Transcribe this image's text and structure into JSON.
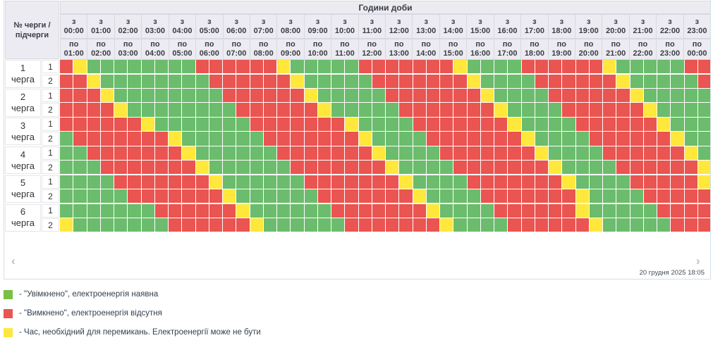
{
  "header": {
    "corner_line1": "№ черги /",
    "corner_line2": "підчерги",
    "title": "Години доби",
    "from_prefix": "з",
    "to_prefix": "по",
    "hours": [
      {
        "from": "00:00",
        "to": "01:00"
      },
      {
        "from": "01:00",
        "to": "02:00"
      },
      {
        "from": "02:00",
        "to": "03:00"
      },
      {
        "from": "03:00",
        "to": "04:00"
      },
      {
        "from": "04:00",
        "to": "05:00"
      },
      {
        "from": "05:00",
        "to": "06:00"
      },
      {
        "from": "06:00",
        "to": "07:00"
      },
      {
        "from": "07:00",
        "to": "08:00"
      },
      {
        "from": "08:00",
        "to": "09:00"
      },
      {
        "from": "09:00",
        "to": "10:00"
      },
      {
        "from": "10:00",
        "to": "11:00"
      },
      {
        "from": "11:00",
        "to": "12:00"
      },
      {
        "from": "12:00",
        "to": "13:00"
      },
      {
        "from": "13:00",
        "to": "14:00"
      },
      {
        "from": "14:00",
        "to": "15:00"
      },
      {
        "from": "15:00",
        "to": "16:00"
      },
      {
        "from": "16:00",
        "to": "17:00"
      },
      {
        "from": "17:00",
        "to": "18:00"
      },
      {
        "from": "18:00",
        "to": "19:00"
      },
      {
        "from": "19:00",
        "to": "20:00"
      },
      {
        "from": "20:00",
        "to": "21:00"
      },
      {
        "from": "21:00",
        "to": "22:00"
      },
      {
        "from": "22:00",
        "to": "23:00"
      },
      {
        "from": "23:00",
        "to": "00:00"
      }
    ]
  },
  "colors": {
    "G": "#6bbc6c",
    "R": "#ea5451",
    "Y": "#ffe83b"
  },
  "groups": [
    {
      "number": "1",
      "word": "черга",
      "subrows": [
        {
          "label": "1",
          "cells": "RYGGGGGGGGRRRRRRYGGGGGRRRRRRRYGGGGRRRRRRYGGGGGRR"
        },
        {
          "label": "2",
          "cells": "RRYGGGGGGGGRRRRRRYGGGGGRRRRRRRYGGGGRRRRRRYGGGGGR"
        }
      ]
    },
    {
      "number": "2",
      "word": "черга",
      "subrows": [
        {
          "label": "1",
          "cells": "RRRYGGGGGGGGRRRRRRYGGGGGRRRRRRRYGGGGRRRRRRYGGGGG"
        },
        {
          "label": "2",
          "cells": "RRRRYGGGGGGGGRRRRRRYGGGGGRRRRRRRYGGGGRRRRRRYGGGG"
        }
      ]
    },
    {
      "number": "3",
      "word": "черга",
      "subrows": [
        {
          "label": "1",
          "cells": "RRRRRRYGGGGGGGRRRRRRRYGGGGRRRRRRRYGGGGRRRRRRYGGG"
        },
        {
          "label": "2",
          "cells": "GRRRRRRRYGGGGGGRRRRRRRYGGGGRRRRRRRYGGGGRRRRRRYGG"
        }
      ]
    },
    {
      "number": "4",
      "word": "черга",
      "subrows": [
        {
          "label": "1",
          "cells": "GGRRRRRRRYGGGGGGRRRRRRRYGGGGRRRRRRRYGGGGRRRRRRYG"
        },
        {
          "label": "2",
          "cells": "GGGRRRRRRRYGGGGGGRRRRRRRYGGGGRRRRRRRYGGGGRRRRRRY"
        }
      ]
    },
    {
      "number": "5",
      "word": "черга",
      "subrows": [
        {
          "label": "1",
          "cells": "GGGGRRRRRRRYGGGGGGRRRRRRRYGGGGRRRRRRRYGGGGRRRRRY"
        },
        {
          "label": "2",
          "cells": "GGGGGRRRRRRRYGGGGGGRRRRRRRYGGGGRRRRRRRYGGGGRRRRR"
        }
      ]
    },
    {
      "number": "6",
      "word": "черга",
      "subrows": [
        {
          "label": "1",
          "cells": "GGGGGGGRRRRRRYGGGGGGRRRRRRRYGGGGRRRRRRYGGGGGRRRR"
        },
        {
          "label": "2",
          "cells": "YGGGGGGGRRRRRRYGGGGGGRRRRRRRYGGGGRRRRRRYGGGGGRRR"
        }
      ]
    }
  ],
  "footer": {
    "prev_icon": "‹",
    "next_icon": "›",
    "timestamp": "20 грудня 2025 18:05"
  },
  "legend": [
    {
      "color": "#79c044",
      "label": "- \"Увімкнено\", електроенергія наявна"
    },
    {
      "color": "#ea5451",
      "label": "- \"Вимкнено\", електроенергія відсутня"
    },
    {
      "color": "#fde73f",
      "label": "- Час, необхідний для перемикань. Електроенергії може не бути"
    }
  ]
}
